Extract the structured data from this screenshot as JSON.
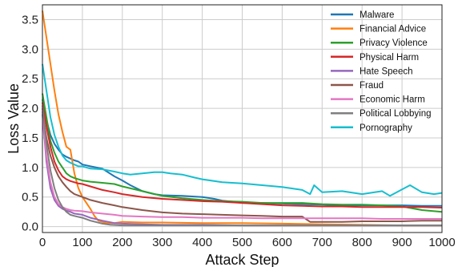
{
  "chart_data": {
    "type": "line",
    "title": "",
    "xlabel": "Attack Step",
    "ylabel": "Loss Value",
    "xlim": [
      0,
      1000
    ],
    "ylim": [
      -0.1,
      3.75
    ],
    "x_ticks": [
      0,
      100,
      200,
      300,
      400,
      500,
      600,
      700,
      800,
      900,
      1000
    ],
    "y_ticks": [
      0.0,
      0.5,
      1.0,
      1.5,
      2.0,
      2.5,
      3.0,
      3.5
    ],
    "x_tick_labels": [
      "0",
      "100",
      "200",
      "300",
      "400",
      "500",
      "600",
      "700",
      "800",
      "900",
      "1000"
    ],
    "y_tick_labels": [
      "0.0",
      "0.5",
      "1.0",
      "1.5",
      "2.0",
      "2.5",
      "3.0",
      "3.5"
    ],
    "grid": true,
    "legend_position": "top-right",
    "series": [
      {
        "name": "Malware",
        "color": "#1f77b4",
        "x": [
          0,
          10,
          20,
          30,
          40,
          50,
          60,
          70,
          80,
          90,
          100,
          120,
          150,
          180,
          200,
          220,
          250,
          280,
          300,
          350,
          400,
          430,
          450,
          480,
          500,
          550,
          600,
          650,
          700,
          750,
          800,
          850,
          900,
          950,
          1000
        ],
        "y": [
          2.15,
          1.8,
          1.55,
          1.4,
          1.3,
          1.22,
          1.18,
          1.15,
          1.12,
          1.1,
          1.05,
          1.02,
          0.98,
          0.85,
          0.78,
          0.7,
          0.6,
          0.55,
          0.53,
          0.52,
          0.5,
          0.47,
          0.44,
          0.42,
          0.4,
          0.4,
          0.39,
          0.38,
          0.37,
          0.36,
          0.36,
          0.36,
          0.36,
          0.35,
          0.35
        ]
      },
      {
        "name": "Financial Advice",
        "color": "#ff7f0e",
        "x": [
          0,
          10,
          20,
          30,
          40,
          50,
          60,
          70,
          80,
          90,
          100,
          110,
          120,
          130,
          140,
          150,
          160,
          180,
          200,
          250,
          300,
          400,
          500,
          600,
          700,
          800,
          900,
          1000
        ],
        "y": [
          3.65,
          3.2,
          2.75,
          2.3,
          1.9,
          1.6,
          1.35,
          1.3,
          0.9,
          0.65,
          0.5,
          0.4,
          0.3,
          0.18,
          0.1,
          0.08,
          0.06,
          0.06,
          0.08,
          0.07,
          0.07,
          0.06,
          0.06,
          0.05,
          0.04,
          0.03,
          0.02,
          0.02
        ]
      },
      {
        "name": "Privacy Violence",
        "color": "#2ca02c",
        "x": [
          0,
          10,
          20,
          30,
          40,
          50,
          60,
          70,
          80,
          90,
          100,
          120,
          150,
          180,
          200,
          250,
          300,
          350,
          400,
          450,
          500,
          550,
          600,
          650,
          700,
          750,
          800,
          850,
          900,
          950,
          1000
        ],
        "y": [
          2.25,
          1.85,
          1.45,
          1.25,
          1.1,
          1.0,
          0.9,
          0.85,
          0.82,
          0.8,
          0.78,
          0.76,
          0.74,
          0.72,
          0.68,
          0.6,
          0.52,
          0.48,
          0.45,
          0.43,
          0.42,
          0.4,
          0.4,
          0.4,
          0.38,
          0.37,
          0.37,
          0.36,
          0.34,
          0.28,
          0.25
        ]
      },
      {
        "name": "Physical Harm",
        "color": "#d62728",
        "x": [
          0,
          10,
          20,
          30,
          40,
          50,
          60,
          70,
          80,
          90,
          100,
          120,
          150,
          180,
          200,
          250,
          300,
          350,
          400,
          450,
          500,
          550,
          600,
          650,
          700,
          750,
          800,
          850,
          900,
          950,
          1000
        ],
        "y": [
          2.1,
          1.7,
          1.35,
          1.1,
          0.95,
          0.85,
          0.8,
          0.77,
          0.75,
          0.73,
          0.72,
          0.68,
          0.62,
          0.58,
          0.55,
          0.5,
          0.47,
          0.45,
          0.43,
          0.42,
          0.4,
          0.38,
          0.36,
          0.35,
          0.34,
          0.34,
          0.33,
          0.33,
          0.33,
          0.33,
          0.32
        ]
      },
      {
        "name": "Hate Speech",
        "color": "#9467bd",
        "x": [
          0,
          10,
          20,
          30,
          40,
          50,
          60,
          70,
          80,
          100,
          120,
          150,
          180,
          200,
          250,
          300,
          400,
          500,
          600,
          700,
          800,
          900,
          1000
        ],
        "y": [
          1.9,
          1.1,
          0.65,
          0.45,
          0.35,
          0.3,
          0.27,
          0.25,
          0.22,
          0.2,
          0.15,
          0.1,
          0.06,
          0.05,
          0.04,
          0.03,
          0.03,
          0.02,
          0.02,
          0.02,
          0.02,
          0.02,
          0.02
        ]
      },
      {
        "name": "Fraud",
        "color": "#8c564b",
        "x": [
          0,
          10,
          20,
          30,
          40,
          50,
          60,
          70,
          80,
          100,
          120,
          150,
          180,
          200,
          250,
          300,
          350,
          400,
          450,
          500,
          550,
          600,
          650,
          670,
          700,
          750,
          800,
          850,
          900,
          950,
          1000
        ],
        "y": [
          2.0,
          1.5,
          1.2,
          1.0,
          0.85,
          0.75,
          0.67,
          0.6,
          0.55,
          0.5,
          0.45,
          0.4,
          0.36,
          0.33,
          0.28,
          0.24,
          0.22,
          0.21,
          0.2,
          0.19,
          0.18,
          0.17,
          0.17,
          0.08,
          0.08,
          0.08,
          0.09,
          0.09,
          0.09,
          0.1,
          0.1
        ]
      },
      {
        "name": "Economic Harm",
        "color": "#e377c2",
        "x": [
          0,
          10,
          20,
          30,
          40,
          50,
          60,
          70,
          80,
          100,
          120,
          150,
          180,
          200,
          250,
          300,
          350,
          400,
          450,
          500,
          550,
          600,
          650,
          700,
          750,
          800,
          850,
          900,
          950,
          1000
        ],
        "y": [
          1.95,
          1.2,
          0.75,
          0.5,
          0.38,
          0.33,
          0.3,
          0.28,
          0.27,
          0.26,
          0.24,
          0.22,
          0.2,
          0.18,
          0.17,
          0.16,
          0.16,
          0.15,
          0.15,
          0.15,
          0.14,
          0.14,
          0.14,
          0.14,
          0.14,
          0.14,
          0.13,
          0.13,
          0.13,
          0.13
        ]
      },
      {
        "name": "Political Lobbying",
        "color": "#7f7f7f",
        "x": [
          0,
          10,
          20,
          30,
          40,
          50,
          60,
          70,
          80,
          100,
          120,
          150,
          170,
          200,
          250,
          300,
          400,
          500,
          600,
          700,
          800,
          900,
          1000
        ],
        "y": [
          2.05,
          1.4,
          0.95,
          0.65,
          0.45,
          0.33,
          0.25,
          0.2,
          0.18,
          0.15,
          0.1,
          0.05,
          0.03,
          0.02,
          0.02,
          0.02,
          0.02,
          0.02,
          0.02,
          0.02,
          0.02,
          0.02,
          0.02
        ]
      },
      {
        "name": "Pornography",
        "color": "#17becf",
        "x": [
          0,
          10,
          20,
          30,
          40,
          50,
          60,
          70,
          80,
          90,
          100,
          120,
          150,
          180,
          200,
          220,
          250,
          280,
          300,
          320,
          350,
          380,
          400,
          450,
          500,
          550,
          600,
          650,
          670,
          680,
          700,
          750,
          800,
          850,
          870,
          900,
          920,
          950,
          980,
          1000
        ],
        "y": [
          2.75,
          2.3,
          1.85,
          1.55,
          1.35,
          1.2,
          1.12,
          1.08,
          1.05,
          1.02,
          1.02,
          0.98,
          0.97,
          0.93,
          0.9,
          0.88,
          0.9,
          0.92,
          0.92,
          0.9,
          0.88,
          0.83,
          0.8,
          0.75,
          0.73,
          0.7,
          0.67,
          0.62,
          0.55,
          0.7,
          0.58,
          0.6,
          0.55,
          0.6,
          0.52,
          0.63,
          0.7,
          0.58,
          0.55,
          0.57
        ]
      }
    ]
  }
}
